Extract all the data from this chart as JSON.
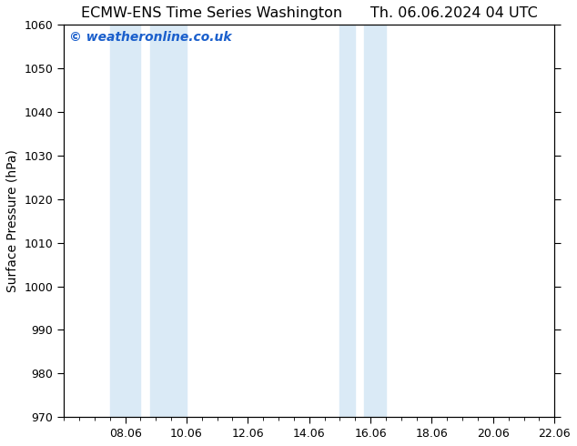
{
  "title_left": "ECMW-ENS Time Series Washington",
  "title_right": "Th. 06.06.2024 04 UTC",
  "ylabel": "Surface Pressure (hPa)",
  "ylim": [
    970,
    1060
  ],
  "yticks": [
    970,
    980,
    990,
    1000,
    1010,
    1020,
    1030,
    1040,
    1050,
    1060
  ],
  "xlim": [
    0,
    16
  ],
  "xtick_labels": [
    "08.06",
    "10.06",
    "12.06",
    "14.06",
    "16.06",
    "18.06",
    "20.06",
    "22.06"
  ],
  "xtick_positions": [
    2,
    4,
    6,
    8,
    10,
    12,
    14,
    16
  ],
  "shaded_bands": [
    {
      "x_start": 1.5,
      "x_end": 2.5
    },
    {
      "x_start": 2.8,
      "x_end": 4.0
    },
    {
      "x_start": 9.0,
      "x_end": 9.5
    },
    {
      "x_start": 9.8,
      "x_end": 10.5
    }
  ],
  "shaded_color": "#daeaf6",
  "watermark_text": "© weatheronline.co.uk",
  "watermark_color": "#1a5fcc",
  "background_color": "#ffffff",
  "axis_bg_color": "#ffffff",
  "tick_color": "#000000",
  "title_fontsize": 11.5,
  "label_fontsize": 10,
  "tick_fontsize": 9,
  "watermark_fontsize": 10
}
